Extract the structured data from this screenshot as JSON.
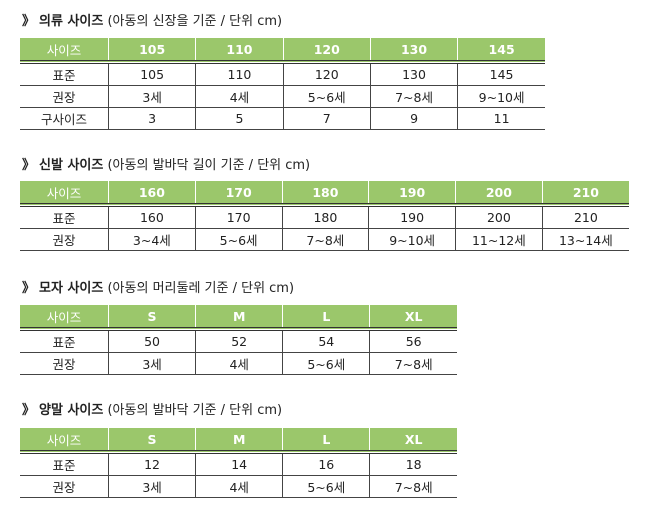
{
  "sections": [
    {
      "title_bold": "의류 사이즈",
      "title_note": "(아동의 신장을 기준 / 단위 cm)",
      "header": [
        "사이즈",
        "105",
        "110",
        "120",
        "130",
        "145"
      ],
      "rows": [
        [
          "표준",
          "105",
          "110",
          "120",
          "130",
          "145"
        ],
        [
          "권장",
          "3세",
          "4세",
          "5~6세",
          "7~8세",
          "9~10세"
        ],
        [
          "구사이즈",
          "3",
          "5",
          "7",
          "9",
          "11"
        ]
      ]
    },
    {
      "title_bold": "신발 사이즈",
      "title_note": "(아동의 발바닥 길이 기준 / 단위 cm)",
      "header": [
        "사이즈",
        "160",
        "170",
        "180",
        "190",
        "200",
        "210"
      ],
      "rows": [
        [
          "표준",
          "160",
          "170",
          "180",
          "190",
          "200",
          "210"
        ],
        [
          "권장",
          "3~4세",
          "5~6세",
          "7~8세",
          "9~10세",
          "11~12세",
          "13~14세"
        ]
      ]
    },
    {
      "title_bold": "모자 사이즈",
      "title_note": "(아동의 머리둘레 기준 / 단위 cm)",
      "header": [
        "사이즈",
        "S",
        "M",
        "L",
        "XL"
      ],
      "rows": [
        [
          "표준",
          "50",
          "52",
          "54",
          "56"
        ],
        [
          "권장",
          "3세",
          "4세",
          "5~6세",
          "7~8세"
        ]
      ]
    },
    {
      "title_bold": "양말 사이즈",
      "title_note": "(아동의 발바닥 기준 / 단위 cm)",
      "header": [
        "사이즈",
        "S",
        "M",
        "L",
        "XL"
      ],
      "rows": [
        [
          "표준",
          "12",
          "14",
          "16",
          "18"
        ],
        [
          "권장",
          "3세",
          "4세",
          "5~6세",
          "7~8세"
        ]
      ]
    }
  ],
  "arrow": "》",
  "colors": {
    "header_bg": "#9bc76b",
    "header_text": "#ffffff"
  }
}
